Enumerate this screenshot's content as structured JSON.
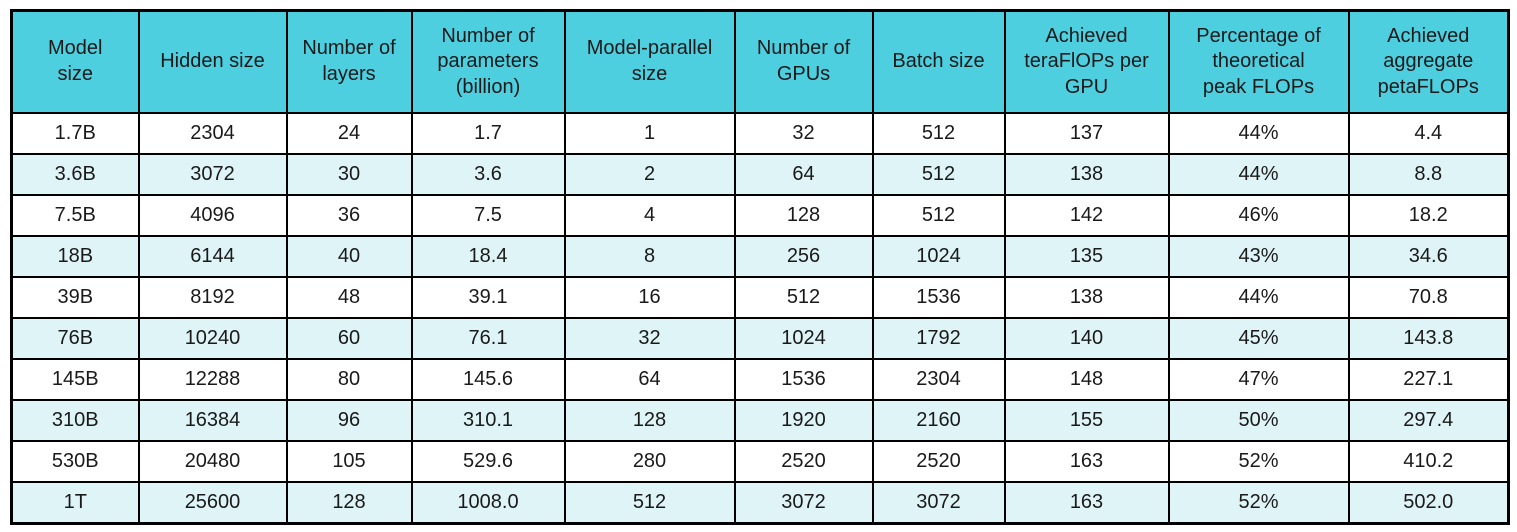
{
  "colors": {
    "header_bg": "#4ecfe0",
    "row_bg": "#ffffff",
    "row_alt_bg": "#dff4f7",
    "border": "#000000",
    "text": "#1a1a1a"
  },
  "table": {
    "header_display": [
      "Model\nsize",
      "Hidden size",
      "Number of\nlayers",
      "Number of\nparameters\n(billion)",
      "Model-parallel\nsize",
      "Number of\nGPUs",
      "Batch size",
      "Achieved\nteraFlOPs per\nGPU",
      "Percentage of\ntheoretical\npeak FLOPs",
      "Achieved\naggregate\npetaFLOPs"
    ]
  },
  "chart_data": {
    "type": "table",
    "title": "",
    "columns": [
      "Model size",
      "Hidden size",
      "Number of layers",
      "Number of parameters (billion)",
      "Model-parallel size",
      "Number of GPUs",
      "Batch size",
      "Achieved teraFlOPs per GPU",
      "Percentage of theoretical peak FLOPs",
      "Achieved aggregate petaFLOPs"
    ],
    "rows": [
      [
        "1.7B",
        "2304",
        "24",
        "1.7",
        "1",
        "32",
        "512",
        "137",
        "44%",
        "4.4"
      ],
      [
        "3.6B",
        "3072",
        "30",
        "3.6",
        "2",
        "64",
        "512",
        "138",
        "44%",
        "8.8"
      ],
      [
        "7.5B",
        "4096",
        "36",
        "7.5",
        "4",
        "128",
        "512",
        "142",
        "46%",
        "18.2"
      ],
      [
        "18B",
        "6144",
        "40",
        "18.4",
        "8",
        "256",
        "1024",
        "135",
        "43%",
        "34.6"
      ],
      [
        "39B",
        "8192",
        "48",
        "39.1",
        "16",
        "512",
        "1536",
        "138",
        "44%",
        "70.8"
      ],
      [
        "76B",
        "10240",
        "60",
        "76.1",
        "32",
        "1024",
        "1792",
        "140",
        "45%",
        "143.8"
      ],
      [
        "145B",
        "12288",
        "80",
        "145.6",
        "64",
        "1536",
        "2304",
        "148",
        "47%",
        "227.1"
      ],
      [
        "310B",
        "16384",
        "96",
        "310.1",
        "128",
        "1920",
        "2160",
        "155",
        "50%",
        "297.4"
      ],
      [
        "530B",
        "20480",
        "105",
        "529.6",
        "280",
        "2520",
        "2520",
        "163",
        "52%",
        "410.2"
      ],
      [
        "1T",
        "25600",
        "128",
        "1008.0",
        "512",
        "3072",
        "3072",
        "163",
        "52%",
        "502.0"
      ]
    ]
  }
}
